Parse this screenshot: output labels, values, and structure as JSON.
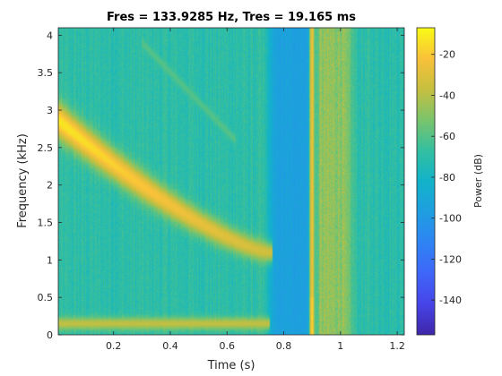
{
  "chart_data": {
    "type": "heatmap",
    "title": "Fres = 133.9285 Hz, Tres = 19.165 ms",
    "xlabel": "Time (s)",
    "ylabel": "Frequency (kHz)",
    "colorbar_label": "Power (dB)",
    "xlim": [
      0.005,
      1.225
    ],
    "ylim": [
      0,
      4.1
    ],
    "clim": [
      -157,
      -7
    ],
    "colormap": "parula",
    "x_ticks": [
      0.2,
      0.4,
      0.6,
      0.8,
      1,
      1.2
    ],
    "x_tick_labels": [
      "0.2",
      "0.4",
      "0.6",
      "0.8",
      "1",
      "1.2"
    ],
    "y_ticks": [
      0,
      0.5,
      1,
      1.5,
      2,
      2.5,
      3,
      3.5,
      4
    ],
    "y_tick_labels": [
      "0",
      "0.5",
      "1",
      "1.5",
      "2",
      "2.5",
      "3",
      "3.5",
      "4"
    ],
    "cbar_ticks": [
      -140,
      -120,
      -100,
      -80,
      -60,
      -40,
      -20
    ],
    "cbar_tick_labels": [
      "-140",
      "-120",
      "-100",
      "-80",
      "-60",
      "-40",
      "-20"
    ],
    "features": [
      {
        "kind": "chirp",
        "t_start": 0.01,
        "t_end": 0.75,
        "f_start_khz": 2.85,
        "f_end_khz": 1.1,
        "peak_db": -12
      },
      {
        "kind": "chirp_harmonic",
        "t_start": 0.3,
        "t_end": 0.63,
        "f_start_khz": 3.9,
        "f_end_khz": 2.6,
        "peak_db": -60
      },
      {
        "kind": "low_band",
        "t_start": 0.0,
        "t_end": 0.75,
        "f_khz": 0.15,
        "peak_db": -38
      },
      {
        "kind": "impulse",
        "t_khz_start": 0.89,
        "t_end": 0.91,
        "peak_db": -25
      },
      {
        "kind": "noise_burst",
        "t_start": 0.91,
        "t_end": 1.06,
        "level_db": -48
      }
    ],
    "background_db": -70,
    "quiet_gap": {
      "t_start": 0.77,
      "t_end": 0.89,
      "level_db": -95
    }
  }
}
